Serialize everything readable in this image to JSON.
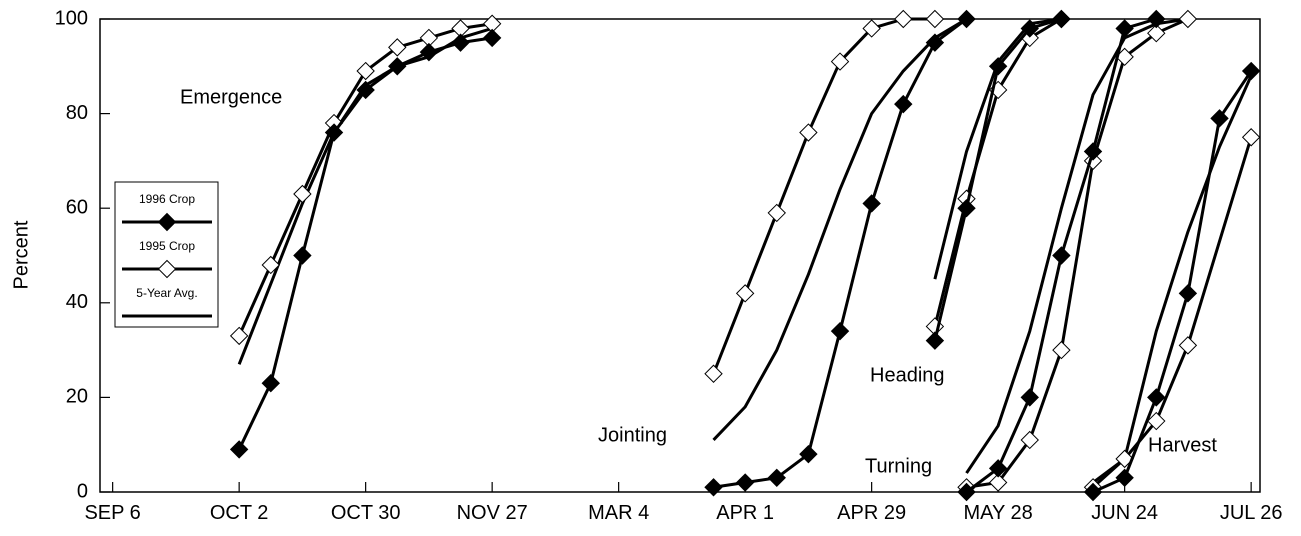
{
  "chart_data": {
    "type": "line",
    "y_label": "Percent",
    "annotations": [
      "Emergence",
      "Jointing",
      "Heading",
      "Turning",
      "Harvest"
    ],
    "xlim": [
      -0.1,
      9.07
    ],
    "xticks": [
      {
        "value": 0,
        "label": "SEP 6"
      },
      {
        "value": 1,
        "label": "OCT 2"
      },
      {
        "value": 2,
        "label": "OCT 30"
      },
      {
        "value": 3,
        "label": "NOV 27"
      },
      {
        "value": 4,
        "label": "MAR 4"
      },
      {
        "value": 5,
        "label": "APR 1"
      },
      {
        "value": 6,
        "label": "APR 29"
      },
      {
        "value": 7,
        "label": "MAY 28"
      },
      {
        "value": 8,
        "label": "JUN 24"
      },
      {
        "value": 9,
        "label": "JUL 26"
      }
    ],
    "ylim": [
      0,
      100
    ],
    "yticks": [
      0,
      20,
      40,
      60,
      80,
      100
    ],
    "series": [
      {
        "name": "1996 Crop",
        "color": "#000000",
        "marker": "filled",
        "groups": [
          {
            "x": [
              1,
              1.25,
              1.5,
              1.75,
              2,
              2.25,
              2.5,
              2.75,
              3
            ],
            "values": [
              9,
              23,
              50,
              76,
              85,
              90,
              93,
              95,
              96
            ]
          },
          {
            "x": [
              4.75,
              5,
              5.25,
              5.5,
              5.75,
              6,
              6.25,
              6.5,
              6.75
            ],
            "values": [
              1,
              2,
              3,
              8,
              34,
              61,
              82,
              95,
              100
            ]
          },
          {
            "x": [
              6.5,
              6.75,
              7,
              7.25,
              7.5
            ],
            "values": [
              32,
              60,
              90,
              98,
              100
            ]
          },
          {
            "x": [
              6.75,
              7,
              7.25,
              7.5,
              7.75,
              8,
              8.25
            ],
            "values": [
              0,
              5,
              20,
              50,
              72,
              98,
              100
            ]
          },
          {
            "x": [
              7.75,
              8,
              8.25,
              8.5,
              8.75,
              9
            ],
            "values": [
              0,
              3,
              20,
              42,
              79,
              89
            ]
          }
        ]
      },
      {
        "name": "1995 Crop",
        "color": "#000000",
        "marker": "open",
        "groups": [
          {
            "x": [
              1,
              1.25,
              1.5,
              1.75,
              2,
              2.25,
              2.5,
              2.75,
              3
            ],
            "values": [
              33,
              48,
              63,
              78,
              89,
              94,
              96,
              98,
              99
            ]
          },
          {
            "x": [
              4.75,
              5,
              5.25,
              5.5,
              5.75,
              6,
              6.25,
              6.5
            ],
            "values": [
              25,
              42,
              59,
              76,
              91,
              98,
              100,
              100
            ]
          },
          {
            "x": [
              6.5,
              6.75,
              7,
              7.25,
              7.5
            ],
            "values": [
              35,
              62,
              85,
              96,
              100
            ]
          },
          {
            "x": [
              6.75,
              7,
              7.25,
              7.5,
              7.75,
              8,
              8.25,
              8.5
            ],
            "values": [
              1,
              2,
              11,
              30,
              70,
              92,
              97,
              100
            ]
          },
          {
            "x": [
              7.75,
              8,
              8.25,
              8.5,
              9
            ],
            "values": [
              1,
              7,
              15,
              31,
              75
            ]
          }
        ]
      },
      {
        "name": "5-Year Avg.",
        "color": "#000000",
        "marker": "none",
        "groups": [
          {
            "x": [
              1,
              1.25,
              1.5,
              1.75,
              2,
              2.25,
              2.5,
              2.75,
              3
            ],
            "values": [
              27,
              44,
              61,
              76,
              86,
              90,
              92,
              96,
              98
            ]
          },
          {
            "x": [
              4.75,
              5,
              5.25,
              5.5,
              5.75,
              6,
              6.25,
              6.5,
              6.75
            ],
            "values": [
              11,
              18,
              30,
              46,
              64,
              80,
              89,
              96,
              100
            ]
          },
          {
            "x": [
              6.5,
              6.75,
              7,
              7.25,
              7.5
            ],
            "values": [
              45,
              72,
              91,
              99,
              100
            ]
          },
          {
            "x": [
              6.75,
              7,
              7.25,
              7.5,
              7.75,
              8,
              8.25,
              8.5
            ],
            "values": [
              4,
              14,
              34,
              60,
              84,
              96,
              99,
              100
            ]
          },
          {
            "x": [
              7.75,
              8,
              8.25,
              8.5,
              8.75,
              9
            ],
            "values": [
              2,
              7,
              34,
              55,
              73,
              88
            ]
          }
        ]
      }
    ]
  }
}
